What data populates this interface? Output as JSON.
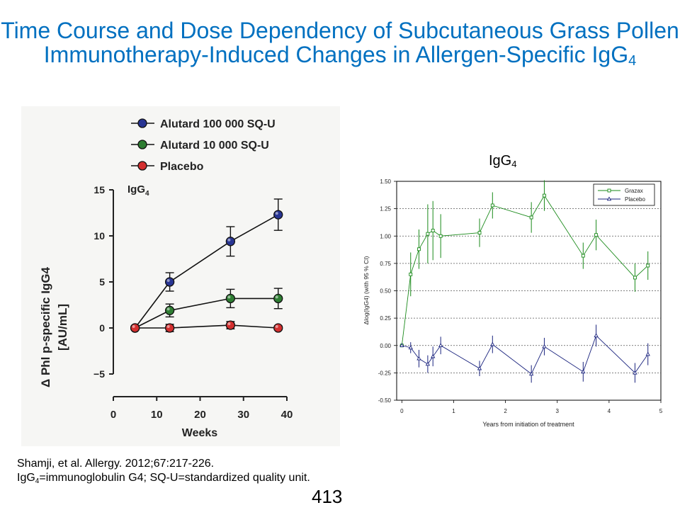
{
  "slide": {
    "title_main": "Time Course and Dose Dependency of Subcutaneous Grass Pollen Immunotherapy-Induced Changes in Allergen-Specific IgG",
    "title_sub": "4",
    "right_chart_title_main": "IgG",
    "right_chart_title_sub": "4",
    "citation": "Shamji, et al. Allergy. 2012;67:217-226.",
    "abbrev_a": "IgG",
    "abbrev_sub": "4",
    "abbrev_b": "=immunoglobulin G4; SQ-U=standardized quality unit.",
    "page_number": "413"
  },
  "chart_data": [
    {
      "type": "line",
      "annotation_main": "IgG",
      "annotation_sub": "4",
      "xlabel": "Weeks",
      "ylabel_line1": "Δ Phl p-specific IgG4",
      "ylabel_line2": "[AU/mL]",
      "xlim": [
        0,
        40
      ],
      "ylim": [
        -5,
        15
      ],
      "xticks": [
        0,
        10,
        20,
        30,
        40
      ],
      "yticks": [
        -5,
        0,
        5,
        10,
        15
      ],
      "ytick_labels": [
        "−5",
        "0",
        "5",
        "10",
        "15"
      ],
      "legend_position": "top-left",
      "series": [
        {
          "name": "Alutard 100 000 SQ-U",
          "color": "#283593",
          "x": [
            5,
            13,
            27,
            38
          ],
          "values": [
            0,
            5.0,
            9.4,
            12.3
          ],
          "err": [
            0,
            1.0,
            1.6,
            1.7
          ]
        },
        {
          "name": "Alutard 10 000 SQ-U",
          "color": "#2e7d32",
          "x": [
            5,
            13,
            27,
            38
          ],
          "values": [
            0,
            1.9,
            3.2,
            3.2
          ],
          "err": [
            0,
            0.7,
            1.0,
            1.1
          ]
        },
        {
          "name": "Placebo",
          "color": "#d32f2f",
          "x": [
            5,
            13,
            27,
            38
          ],
          "values": [
            0,
            0.0,
            0.3,
            0.0
          ],
          "err": [
            0,
            0.4,
            0.4,
            0.2
          ]
        }
      ]
    },
    {
      "type": "line",
      "xlabel": "Years from initiation of treatment",
      "ylabel": "Δlog(IgG4) (with 95 % CI)",
      "xlim": [
        -0.1,
        5
      ],
      "ylim": [
        -0.5,
        1.5
      ],
      "xticks": [
        0,
        1,
        2,
        3,
        4,
        5
      ],
      "yticks": [
        -0.5,
        -0.25,
        0,
        0.25,
        0.5,
        0.75,
        1.0,
        1.25,
        1.5
      ],
      "ytick_labels": [
        "-0.50",
        "-0.25",
        "0.00",
        "0.25",
        "0.50",
        "0.75",
        "1.00",
        "1.25",
        "1.50"
      ],
      "grid": true,
      "legend_position": "top-right",
      "series": [
        {
          "name": "Grazax",
          "color": "#1a8a1a",
          "marker": "square",
          "x": [
            0,
            0.17,
            0.33,
            0.5,
            0.6,
            0.75,
            1.5,
            1.75,
            2.5,
            2.75,
            3.5,
            3.75,
            4.5,
            4.75
          ],
          "values": [
            0,
            0.65,
            0.88,
            1.02,
            1.05,
            1.0,
            1.03,
            1.28,
            1.17,
            1.37,
            0.82,
            1.01,
            0.62,
            0.73
          ],
          "err": [
            0,
            0.2,
            0.18,
            0.27,
            0.27,
            0.2,
            0.13,
            0.12,
            0.14,
            0.14,
            0.12,
            0.14,
            0.13,
            0.13
          ]
        },
        {
          "name": "Placebo",
          "color": "#1a237e",
          "marker": "triangle",
          "x": [
            0,
            0.17,
            0.33,
            0.5,
            0.6,
            0.75,
            1.5,
            1.75,
            2.5,
            2.75,
            3.5,
            3.75,
            4.5,
            4.75
          ],
          "values": [
            0,
            -0.02,
            -0.12,
            -0.17,
            -0.1,
            0.0,
            -0.21,
            0.01,
            -0.26,
            -0.01,
            -0.24,
            0.09,
            -0.25,
            -0.08
          ],
          "err": [
            0,
            0.05,
            0.08,
            0.08,
            0.09,
            0.08,
            0.07,
            0.08,
            0.08,
            0.08,
            0.09,
            0.1,
            0.09,
            0.1
          ]
        }
      ]
    }
  ]
}
